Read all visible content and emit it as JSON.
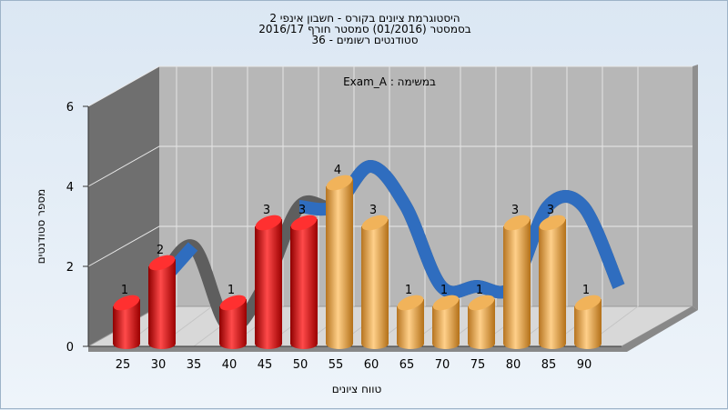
{
  "chart_data": {
    "type": "bar",
    "title_lines": [
      "היסטוגרמת ציונים בקורס - חשבון אינפי 2",
      "בסמסטר  (01/2016)  סמסטר חורף 2016/17",
      "סטודנטים רשומים - 36"
    ],
    "annotation": "Exam_A : במשימה",
    "xlabel": "טווח ציונים",
    "ylabel": "מספר סטודנטים",
    "ylim": [
      0,
      6
    ],
    "y_ticks": [
      "0",
      "2",
      "4",
      "6"
    ],
    "categories": [
      "25",
      "30",
      "35",
      "40",
      "45",
      "50",
      "55",
      "60",
      "65",
      "70",
      "75",
      "80",
      "85",
      "90"
    ],
    "values": [
      1,
      2,
      0,
      1,
      3,
      3,
      4,
      3,
      1,
      1,
      1,
      3,
      3,
      1
    ],
    "bar_colors": [
      "#e21a1a",
      "#e21a1a",
      "#e21a1a",
      "#e21a1a",
      "#e21a1a",
      "#e21a1a",
      "#e9a43c",
      "#e9a43c",
      "#e9a43c",
      "#e9a43c",
      "#e9a43c",
      "#e9a43c",
      "#e9a43c",
      "#e9a43c"
    ],
    "trend_color": "#2f6dbf",
    "trend_shadow_color": "#5e5e5e"
  }
}
